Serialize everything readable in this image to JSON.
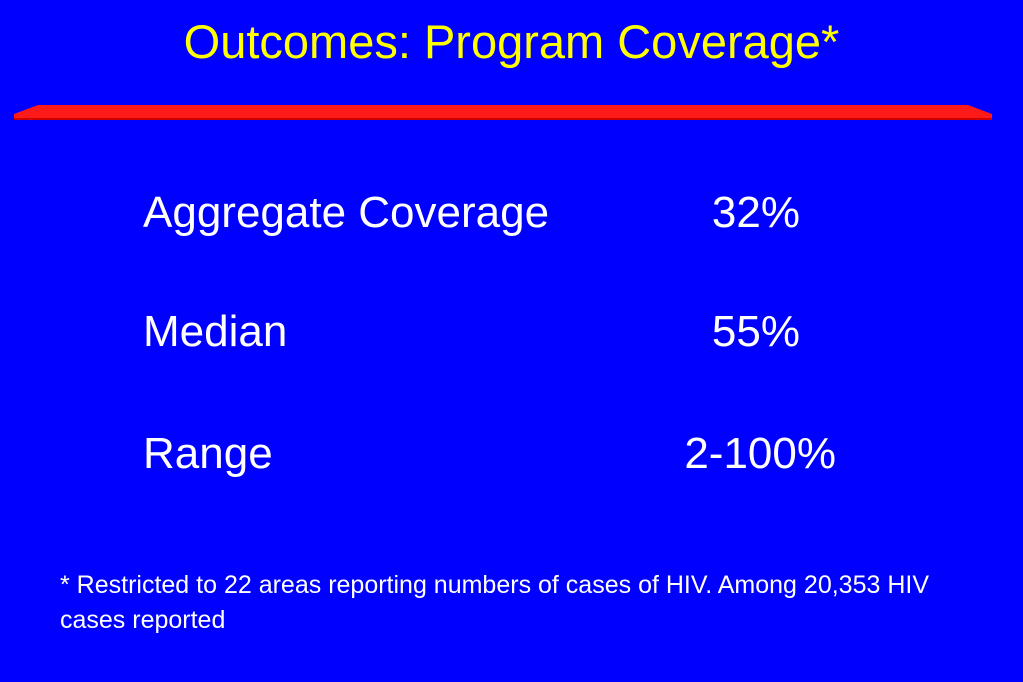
{
  "slide": {
    "title": "Outcomes: Program Coverage*",
    "stats": [
      {
        "label": "Aggregate Coverage",
        "value": "32%"
      },
      {
        "label": "Median",
        "value": "55%"
      },
      {
        "label": "Range",
        "value": "2-100%"
      }
    ],
    "footnote": "* Restricted to 22 areas reporting numbers of cases of HIV.  Among 20,353 HIV cases reported"
  },
  "colors": {
    "background": "#0000ff",
    "title": "#ffff00",
    "text": "#ffffff",
    "divider": "#ff1a1a",
    "divider_shadow": "#b30000"
  }
}
